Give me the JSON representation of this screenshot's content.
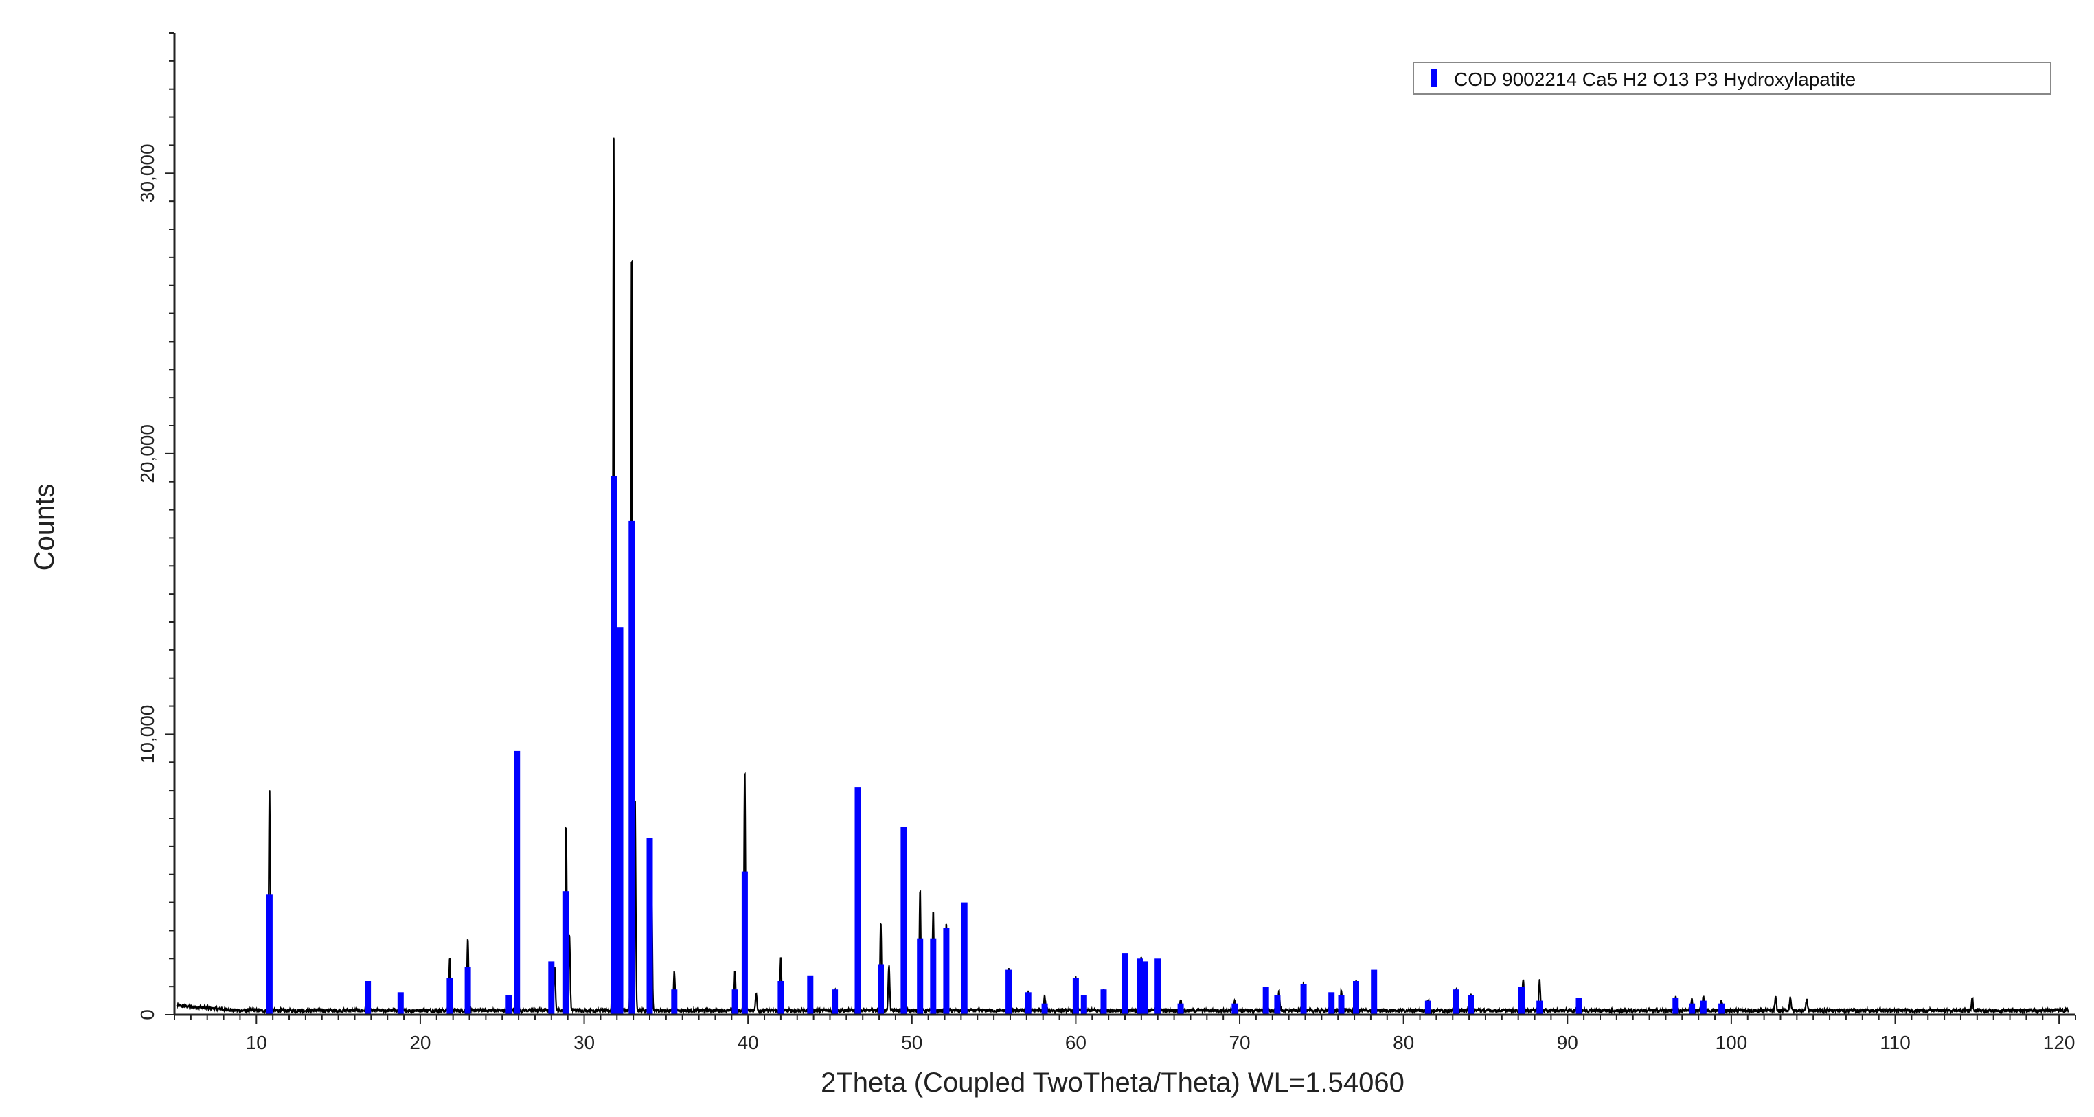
{
  "chart_data": {
    "type": "line",
    "title": "",
    "xlabel": "2Theta (Coupled TwoTheta/Theta) WL=1.54060",
    "ylabel": "Counts",
    "xlim": [
      5,
      121
    ],
    "ylim": [
      0,
      35000
    ],
    "x_ticks": [
      10,
      20,
      30,
      40,
      50,
      60,
      70,
      80,
      90,
      100,
      110,
      120
    ],
    "y_ticks": [
      0,
      10000,
      20000,
      30000
    ],
    "y_tick_labels": [
      "0",
      "10,000",
      "20,000",
      "30,000"
    ],
    "grid": false,
    "legend_position": "top-right",
    "series": [
      {
        "kind": "measured-pattern",
        "color": "#000000",
        "baseline": 150,
        "peaks": [
          [
            10.8,
            8000
          ],
          [
            21.8,
            1900
          ],
          [
            22.9,
            2600
          ],
          [
            25.9,
            9000
          ],
          [
            28.2,
            1600
          ],
          [
            28.9,
            6600
          ],
          [
            29.1,
            2700
          ],
          [
            31.8,
            31900
          ],
          [
            32.2,
            13500
          ],
          [
            32.9,
            27400
          ],
          [
            33.1,
            7600
          ],
          [
            34.1,
            5800
          ],
          [
            35.5,
            1400
          ],
          [
            39.2,
            1400
          ],
          [
            39.8,
            8600
          ],
          [
            40.5,
            600
          ],
          [
            42.0,
            1900
          ],
          [
            43.8,
            1200
          ],
          [
            45.3,
            800
          ],
          [
            46.7,
            7600
          ],
          [
            48.1,
            3100
          ],
          [
            48.6,
            1600
          ],
          [
            49.5,
            6700
          ],
          [
            50.5,
            4300
          ],
          [
            51.3,
            3600
          ],
          [
            52.1,
            3100
          ],
          [
            53.2,
            3700
          ],
          [
            55.9,
            1500
          ],
          [
            57.1,
            700
          ],
          [
            58.1,
            500
          ],
          [
            60.0,
            1200
          ],
          [
            61.7,
            800
          ],
          [
            63.0,
            2000
          ],
          [
            64.0,
            1900
          ],
          [
            65.0,
            1800
          ],
          [
            66.4,
            400
          ],
          [
            69.7,
            400
          ],
          [
            71.6,
            800
          ],
          [
            72.4,
            700
          ],
          [
            73.9,
            1000
          ],
          [
            75.6,
            600
          ],
          [
            76.2,
            700
          ],
          [
            77.1,
            1100
          ],
          [
            78.2,
            1400
          ],
          [
            81.5,
            400
          ],
          [
            83.2,
            800
          ],
          [
            84.1,
            600
          ],
          [
            87.3,
            1100
          ],
          [
            88.3,
            1100
          ],
          [
            90.7,
            400
          ],
          [
            96.6,
            500
          ],
          [
            97.6,
            400
          ],
          [
            98.3,
            500
          ],
          [
            99.4,
            350
          ],
          [
            102.7,
            450
          ],
          [
            103.6,
            500
          ],
          [
            104.6,
            400
          ],
          [
            114.7,
            450
          ]
        ]
      },
      {
        "name": "COD 9002214 Ca5 H2 O13 P3 Hydroxylapatite",
        "kind": "reference-sticks",
        "color": "#0000ff",
        "sticks": [
          [
            10.8,
            4300
          ],
          [
            16.8,
            1200
          ],
          [
            18.8,
            800
          ],
          [
            21.8,
            1300
          ],
          [
            22.9,
            1700
          ],
          [
            25.4,
            700
          ],
          [
            25.9,
            9400
          ],
          [
            28.0,
            1900
          ],
          [
            28.9,
            4400
          ],
          [
            31.8,
            19200
          ],
          [
            32.2,
            13800
          ],
          [
            32.9,
            17600
          ],
          [
            34.0,
            6300
          ],
          [
            35.5,
            900
          ],
          [
            39.2,
            900
          ],
          [
            39.8,
            5100
          ],
          [
            42.0,
            1200
          ],
          [
            43.8,
            1400
          ],
          [
            45.3,
            900
          ],
          [
            46.7,
            8100
          ],
          [
            48.1,
            1800
          ],
          [
            49.5,
            6700
          ],
          [
            50.5,
            2700
          ],
          [
            51.3,
            2700
          ],
          [
            52.1,
            3100
          ],
          [
            53.2,
            4000
          ],
          [
            55.9,
            1600
          ],
          [
            57.1,
            800
          ],
          [
            58.1,
            400
          ],
          [
            60.0,
            1300
          ],
          [
            60.5,
            700
          ],
          [
            61.7,
            900
          ],
          [
            63.0,
            2200
          ],
          [
            63.9,
            2000
          ],
          [
            64.2,
            1900
          ],
          [
            65.0,
            2000
          ],
          [
            66.4,
            400
          ],
          [
            69.7,
            400
          ],
          [
            71.6,
            1000
          ],
          [
            72.3,
            700
          ],
          [
            73.9,
            1100
          ],
          [
            75.6,
            800
          ],
          [
            76.2,
            700
          ],
          [
            77.1,
            1200
          ],
          [
            78.2,
            1600
          ],
          [
            81.5,
            500
          ],
          [
            83.2,
            900
          ],
          [
            84.1,
            700
          ],
          [
            87.2,
            1000
          ],
          [
            88.3,
            500
          ],
          [
            90.7,
            600
          ],
          [
            96.6,
            600
          ],
          [
            97.6,
            400
          ],
          [
            98.3,
            500
          ],
          [
            99.4,
            400
          ]
        ]
      }
    ],
    "colors": {
      "measured": "#000000",
      "reference": "#0000ff",
      "axis": "#222222"
    }
  }
}
